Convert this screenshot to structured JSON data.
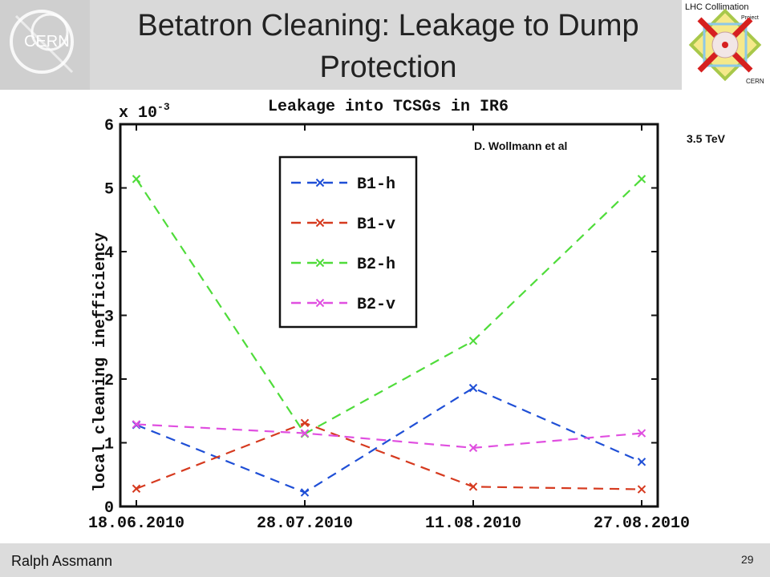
{
  "slide": {
    "title": "Betatron Cleaning: Leakage to Dump Protection",
    "author": "Ralph Assmann",
    "page_number": "29",
    "credit": "D. Wollmann et al",
    "energy": "3.5 TeV",
    "logo_lhc": {
      "line1": "LHC Collimation",
      "line2": "Project",
      "line3": "CERN"
    },
    "logo_cern": "CERN"
  },
  "chart_data": {
    "type": "line",
    "title": "Leakage into TCSGs in IR6",
    "ylabel": "local cleaning inefficiency",
    "xlabel": "",
    "exponent_label": "x 10",
    "exponent_power": "-3",
    "categories": [
      "18.06.2010",
      "28.07.2010",
      "11.08.2010",
      "27.08.2010"
    ],
    "ylim": [
      0,
      6
    ],
    "yticks": [
      "0",
      "1",
      "2",
      "3",
      "4",
      "5",
      "6"
    ],
    "legend_position": "upper-middle",
    "series": [
      {
        "name": "B1-h",
        "color": "#1f4fd6",
        "values": [
          1.28,
          0.22,
          1.86,
          0.7
        ]
      },
      {
        "name": "B1-v",
        "color": "#d63a1f",
        "values": [
          0.28,
          1.31,
          0.31,
          0.27
        ]
      },
      {
        "name": "B2-h",
        "color": "#4fdc3a",
        "values": [
          5.14,
          1.14,
          2.6,
          5.14
        ]
      },
      {
        "name": "B2-v",
        "color": "#e04fe0",
        "values": [
          1.29,
          1.15,
          0.92,
          1.15
        ]
      }
    ]
  }
}
